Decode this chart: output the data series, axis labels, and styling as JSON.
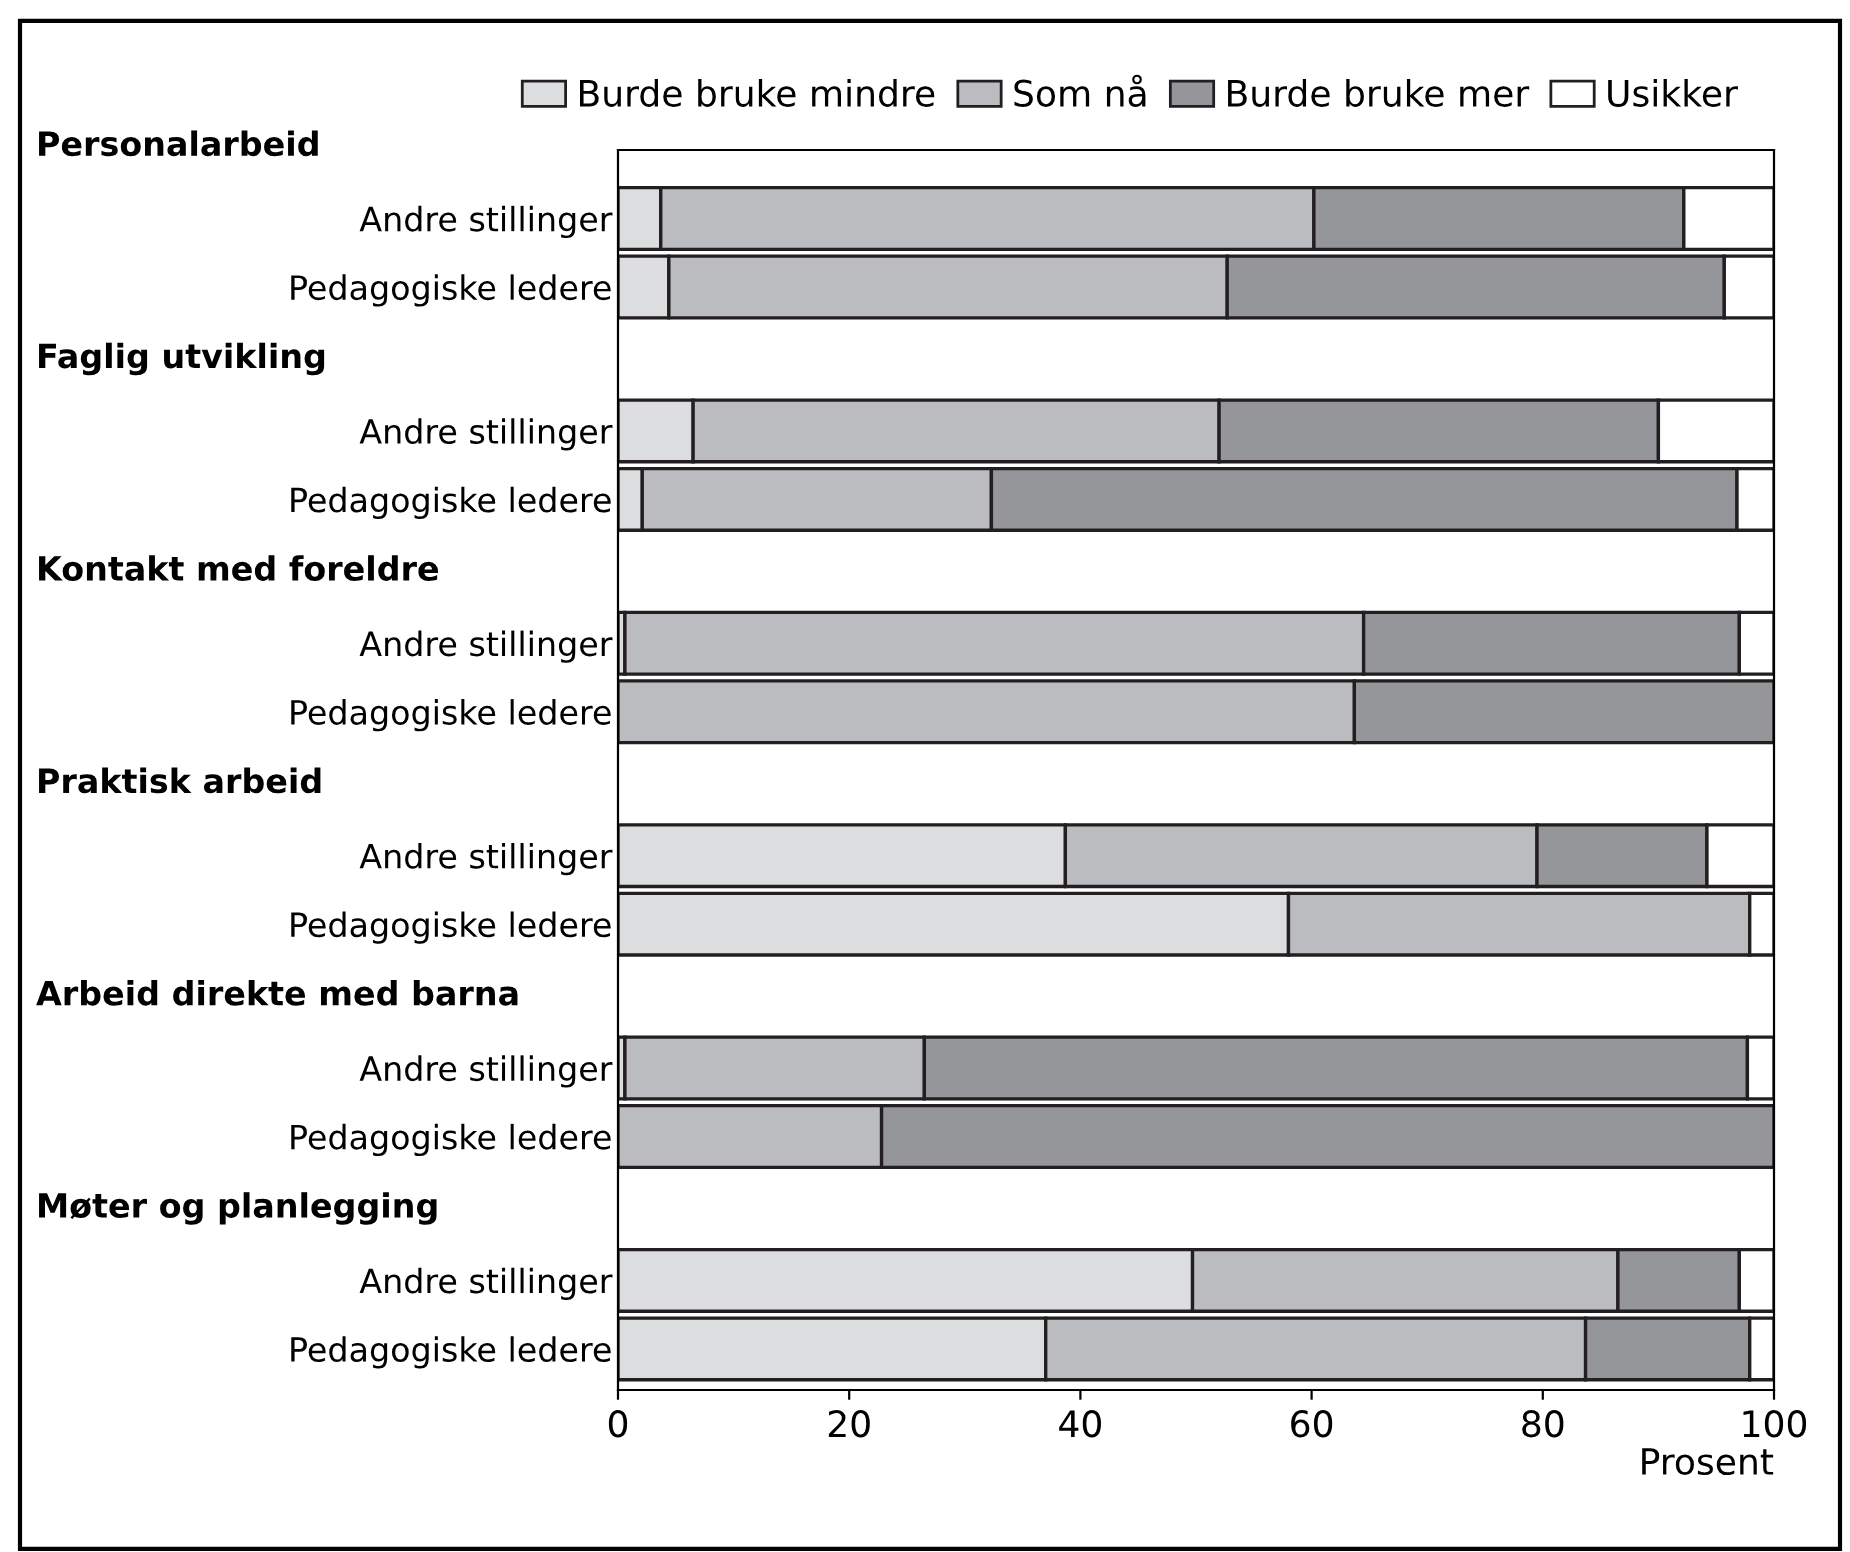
{
  "chart_data": {
    "type": "bar",
    "orientation": "horizontal",
    "stacked": true,
    "xlabel": "Prosent",
    "legend": "top",
    "annotations": [
      "Personalarbeid",
      "Faglig utvikling",
      "Kontakt med foreldre",
      "Praktisk arbeid",
      "Arbeid direkte med barna",
      "Møter og planlegging"
    ],
    "categories": [
      "Andre stillinger",
      "Pedagogiske ledere",
      "Andre stillinger",
      "Pedagogiske ledere",
      "Andre stillinger",
      "Pedagogiske ledere",
      "Andre stillinger",
      "Pedagogiske ledere",
      "Andre stillinger",
      "Pedagogiske ledere",
      "Andre stillinger",
      "Pedagogiske ledere"
    ],
    "series": [
      {
        "name": "Burde bruke mindre",
        "color": "#dcdddf",
        "values": [
          3.7,
          4.4,
          6.5,
          2.1,
          0.6,
          0,
          38.7,
          58.0,
          0.6,
          0,
          49.7,
          37.0
        ]
      },
      {
        "name": "Som nå",
        "color": "#bbbcc0",
        "values": [
          56.5,
          48.3,
          45.5,
          30.2,
          63.9,
          63.7,
          40.8,
          39.9,
          25.9,
          22.8,
          36.8,
          46.7
        ]
      },
      {
        "name": "Burde bruke mer",
        "color": "#959699",
        "values": [
          32.0,
          43.0,
          38.0,
          64.5,
          32.5,
          36.3,
          14.7,
          0,
          71.2,
          77.2,
          10.5,
          14.2
        ]
      },
      {
        "name": "Usikker",
        "color": "#ffffff",
        "values": [
          7.8,
          4.3,
          10.0,
          3.2,
          3.0,
          0,
          5.8,
          2.1,
          2.3,
          0,
          3.0,
          2.1
        ]
      }
    ],
    "xlim": [
      0,
      100
    ],
    "xticks": [
      0,
      20,
      40,
      60,
      80,
      100
    ],
    "grid": false
  }
}
